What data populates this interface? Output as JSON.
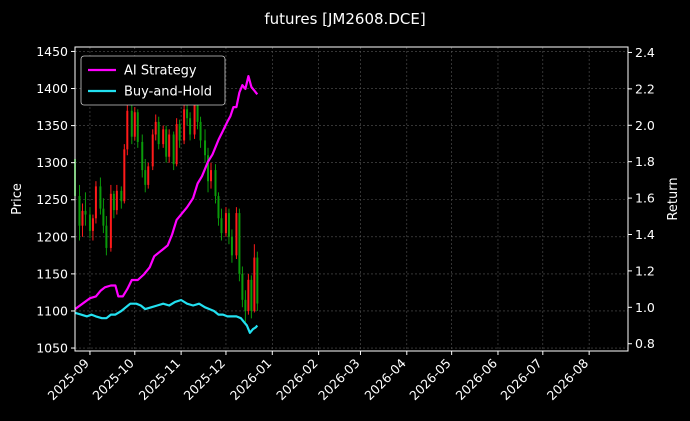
{
  "chart_data": {
    "type": "line",
    "title": "futures [JM2608.DCE]",
    "ylabel_left": "Price",
    "ylabel_right": "Return",
    "grid": true,
    "legend_placement": "top-left",
    "left_axis": {
      "ylim": [
        1046,
        1456
      ],
      "ticks": [
        1050,
        1100,
        1150,
        1200,
        1250,
        1300,
        1350,
        1400,
        1450
      ]
    },
    "right_axis": {
      "ylim": [
        0.76,
        2.43
      ],
      "ticks": [
        0.8,
        1.0,
        1.2,
        1.4,
        1.6,
        1.8,
        2.0,
        2.2,
        2.4
      ]
    },
    "x_axis": {
      "range": [
        "2025-08-22",
        "2026-08-27"
      ],
      "ticks": [
        "2025-09",
        "2025-10",
        "2025-11",
        "2025-12",
        "2026-01",
        "2026-02",
        "2026-03",
        "2026-04",
        "2026-05",
        "2026-06",
        "2026-07",
        "2026-08"
      ]
    },
    "colors": {
      "up": "#ff1a1a",
      "down": "#0a9a0a",
      "ai_strategy": "#ff00ff",
      "buy_and_hold": "#22e0f0"
    },
    "series": [
      {
        "name": "AI Strategy",
        "axis": "right",
        "points": [
          [
            "2025-08-22",
            0.99
          ],
          [
            "2025-08-27",
            1.02
          ],
          [
            "2025-09-01",
            1.05
          ],
          [
            "2025-09-05",
            1.06
          ],
          [
            "2025-09-08",
            1.09
          ],
          [
            "2025-09-11",
            1.11
          ],
          [
            "2025-09-15",
            1.12
          ],
          [
            "2025-09-18",
            1.12
          ],
          [
            "2025-09-20",
            1.06
          ],
          [
            "2025-09-23",
            1.06
          ],
          [
            "2025-09-26",
            1.1
          ],
          [
            "2025-09-29",
            1.15
          ],
          [
            "2025-10-03",
            1.15
          ],
          [
            "2025-10-07",
            1.18
          ],
          [
            "2025-10-11",
            1.22
          ],
          [
            "2025-10-14",
            1.28
          ],
          [
            "2025-10-17",
            1.3
          ],
          [
            "2025-10-20",
            1.32
          ],
          [
            "2025-10-23",
            1.34
          ],
          [
            "2025-10-26",
            1.4
          ],
          [
            "2025-10-29",
            1.48
          ],
          [
            "2025-11-02",
            1.52
          ],
          [
            "2025-11-05",
            1.55
          ],
          [
            "2025-11-09",
            1.6
          ],
          [
            "2025-11-12",
            1.68
          ],
          [
            "2025-11-15",
            1.72
          ],
          [
            "2025-11-19",
            1.8
          ],
          [
            "2025-11-22",
            1.84
          ],
          [
            "2025-11-26",
            1.92
          ],
          [
            "2025-11-29",
            1.97
          ],
          [
            "2025-12-02",
            2.02
          ],
          [
            "2025-12-04",
            2.05
          ],
          [
            "2025-12-06",
            2.1
          ],
          [
            "2025-12-08",
            2.1
          ],
          [
            "2025-12-10",
            2.18
          ],
          [
            "2025-12-12",
            2.22
          ],
          [
            "2025-12-14",
            2.2
          ],
          [
            "2025-12-16",
            2.27
          ],
          [
            "2025-12-18",
            2.21
          ],
          [
            "2025-12-20",
            2.19
          ],
          [
            "2025-12-22",
            2.17
          ]
        ]
      },
      {
        "name": "Buy-and-Hold",
        "axis": "right",
        "points": [
          [
            "2025-08-22",
            0.97
          ],
          [
            "2025-08-26",
            0.96
          ],
          [
            "2025-08-30",
            0.95
          ],
          [
            "2025-09-02",
            0.96
          ],
          [
            "2025-09-05",
            0.95
          ],
          [
            "2025-09-09",
            0.94
          ],
          [
            "2025-09-12",
            0.94
          ],
          [
            "2025-09-15",
            0.96
          ],
          [
            "2025-09-18",
            0.96
          ],
          [
            "2025-09-22",
            0.98
          ],
          [
            "2025-09-25",
            1.0
          ],
          [
            "2025-09-28",
            1.02
          ],
          [
            "2025-10-02",
            1.02
          ],
          [
            "2025-10-05",
            1.01
          ],
          [
            "2025-10-08",
            0.99
          ],
          [
            "2025-10-12",
            1.0
          ],
          [
            "2025-10-16",
            1.01
          ],
          [
            "2025-10-20",
            1.02
          ],
          [
            "2025-10-24",
            1.01
          ],
          [
            "2025-10-28",
            1.03
          ],
          [
            "2025-11-01",
            1.04
          ],
          [
            "2025-11-05",
            1.02
          ],
          [
            "2025-11-09",
            1.01
          ],
          [
            "2025-11-13",
            1.02
          ],
          [
            "2025-11-17",
            1.0
          ],
          [
            "2025-11-20",
            0.99
          ],
          [
            "2025-11-23",
            0.98
          ],
          [
            "2025-11-26",
            0.96
          ],
          [
            "2025-11-29",
            0.96
          ],
          [
            "2025-12-02",
            0.95
          ],
          [
            "2025-12-05",
            0.95
          ],
          [
            "2025-12-08",
            0.95
          ],
          [
            "2025-12-11",
            0.94
          ],
          [
            "2025-12-13",
            0.92
          ],
          [
            "2025-12-15",
            0.9
          ],
          [
            "2025-12-17",
            0.86
          ],
          [
            "2025-12-19",
            0.88
          ],
          [
            "2025-12-21",
            0.89
          ],
          [
            "2025-12-22",
            0.9
          ]
        ]
      }
    ],
    "candles": [
      [
        "2025-08-22",
        1305,
        1325,
        1240,
        1255
      ],
      [
        "2025-08-25",
        1255,
        1270,
        1195,
        1215
      ],
      [
        "2025-08-27",
        1215,
        1245,
        1200,
        1235
      ],
      [
        "2025-08-29",
        1235,
        1260,
        1215,
        1230
      ],
      [
        "2025-09-01",
        1230,
        1240,
        1198,
        1208
      ],
      [
        "2025-09-03",
        1208,
        1230,
        1195,
        1225
      ],
      [
        "2025-09-05",
        1225,
        1275,
        1218,
        1268
      ],
      [
        "2025-09-08",
        1268,
        1280,
        1230,
        1238
      ],
      [
        "2025-09-10",
        1238,
        1252,
        1205,
        1215
      ],
      [
        "2025-09-12",
        1215,
        1228,
        1175,
        1185
      ],
      [
        "2025-09-15",
        1185,
        1270,
        1180,
        1258
      ],
      [
        "2025-09-17",
        1258,
        1262,
        1225,
        1236
      ],
      [
        "2025-09-19",
        1236,
        1270,
        1230,
        1262
      ],
      [
        "2025-09-22",
        1262,
        1268,
        1238,
        1248
      ],
      [
        "2025-09-24",
        1248,
        1325,
        1245,
        1318
      ],
      [
        "2025-09-26",
        1318,
        1385,
        1310,
        1370
      ],
      [
        "2025-09-29",
        1370,
        1382,
        1325,
        1335
      ],
      [
        "2025-10-01",
        1335,
        1375,
        1330,
        1368
      ],
      [
        "2025-10-03",
        1368,
        1372,
        1320,
        1328
      ],
      [
        "2025-10-06",
        1328,
        1338,
        1280,
        1290
      ],
      [
        "2025-10-08",
        1290,
        1305,
        1260,
        1270
      ],
      [
        "2025-10-10",
        1270,
        1300,
        1265,
        1295
      ],
      [
        "2025-10-13",
        1295,
        1345,
        1290,
        1338
      ],
      [
        "2025-10-15",
        1338,
        1365,
        1330,
        1355
      ],
      [
        "2025-10-17",
        1355,
        1362,
        1318,
        1325
      ],
      [
        "2025-10-20",
        1325,
        1350,
        1320,
        1345
      ],
      [
        "2025-10-22",
        1345,
        1350,
        1300,
        1308
      ],
      [
        "2025-10-24",
        1308,
        1345,
        1300,
        1338
      ],
      [
        "2025-10-27",
        1338,
        1342,
        1290,
        1298
      ],
      [
        "2025-10-29",
        1298,
        1360,
        1295,
        1352
      ],
      [
        "2025-10-31",
        1352,
        1358,
        1320,
        1330
      ],
      [
        "2025-11-03",
        1330,
        1380,
        1325,
        1372
      ],
      [
        "2025-11-05",
        1372,
        1385,
        1350,
        1360
      ],
      [
        "2025-11-07",
        1360,
        1368,
        1330,
        1338
      ],
      [
        "2025-11-10",
        1338,
        1390,
        1332,
        1380
      ],
      [
        "2025-11-12",
        1380,
        1392,
        1345,
        1355
      ],
      [
        "2025-11-14",
        1355,
        1362,
        1320,
        1330
      ],
      [
        "2025-11-17",
        1330,
        1345,
        1300,
        1310
      ],
      [
        "2025-11-19",
        1310,
        1320,
        1260,
        1275
      ],
      [
        "2025-11-21",
        1275,
        1300,
        1265,
        1290
      ],
      [
        "2025-11-24",
        1290,
        1298,
        1245,
        1255
      ],
      [
        "2025-11-26",
        1255,
        1260,
        1215,
        1225
      ],
      [
        "2025-11-28",
        1225,
        1238,
        1195,
        1205
      ],
      [
        "2025-12-01",
        1205,
        1240,
        1200,
        1232
      ],
      [
        "2025-12-03",
        1232,
        1238,
        1190,
        1200
      ],
      [
        "2025-12-05",
        1200,
        1210,
        1165,
        1175
      ],
      [
        "2025-12-08",
        1175,
        1240,
        1170,
        1232
      ],
      [
        "2025-12-10",
        1232,
        1238,
        1140,
        1150
      ],
      [
        "2025-12-12",
        1150,
        1160,
        1105,
        1115
      ],
      [
        "2025-12-14",
        1115,
        1128,
        1085,
        1100
      ],
      [
        "2025-12-16",
        1100,
        1150,
        1095,
        1142
      ],
      [
        "2025-12-18",
        1142,
        1148,
        1090,
        1100
      ],
      [
        "2025-12-20",
        1100,
        1190,
        1098,
        1172
      ],
      [
        "2025-12-22",
        1172,
        1180,
        1100,
        1110
      ]
    ]
  }
}
